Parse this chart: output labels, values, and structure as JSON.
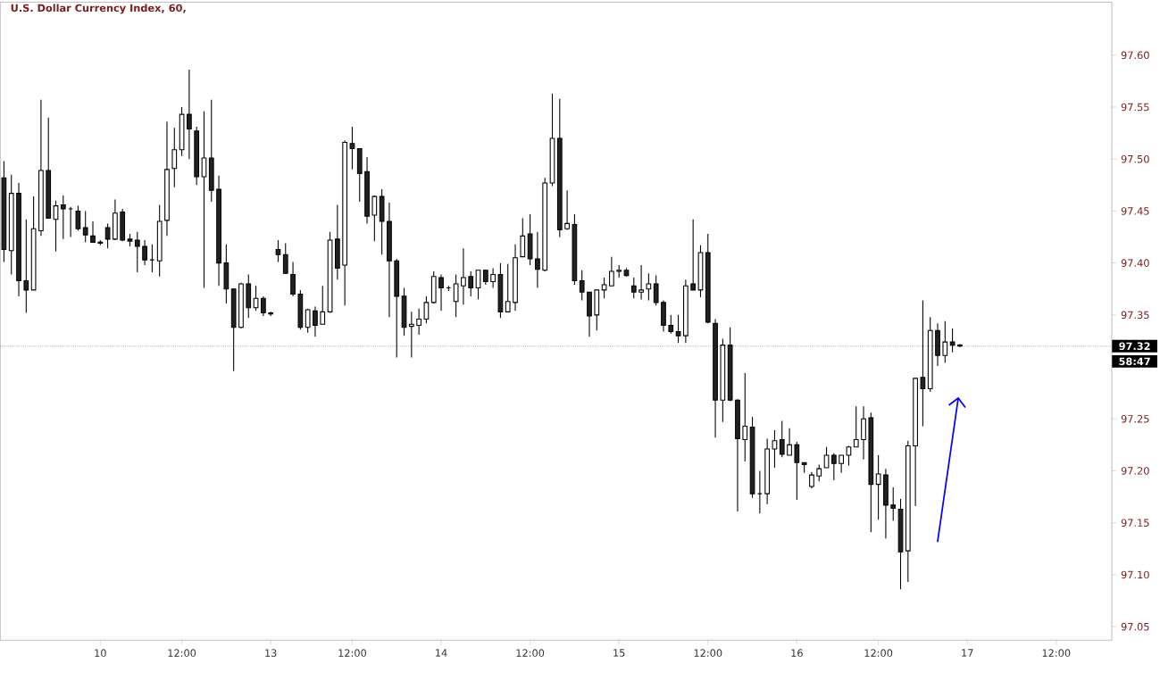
{
  "chart_data": {
    "type": "candlestick",
    "title": "U.S. Dollar Currency Index, 60,",
    "categories": [
      null,
      null,
      null,
      null,
      null,
      null,
      null,
      null,
      null,
      null,
      null,
      null,
      null,
      "10",
      null,
      null,
      null,
      null,
      null,
      null,
      null,
      null,
      null,
      null,
      "12:00",
      null,
      null,
      null,
      null,
      null,
      null,
      null,
      null,
      null,
      null,
      null,
      "13",
      null,
      null,
      null,
      null,
      null,
      null,
      null,
      null,
      null,
      null,
      "12:00",
      null,
      null,
      null,
      null,
      null,
      null,
      null,
      null,
      null,
      null,
      null,
      "14",
      null,
      null,
      null,
      null,
      null,
      null,
      null,
      null,
      null,
      null,
      null,
      "12:00",
      null,
      null,
      null,
      null,
      null,
      null,
      null,
      null,
      null,
      null,
      null,
      "15",
      null,
      null,
      null,
      null,
      null,
      null,
      null,
      null,
      null,
      null,
      null,
      "12:00",
      null,
      null,
      null,
      null,
      null,
      null,
      null,
      null,
      null,
      null,
      null,
      "16",
      null,
      null,
      null,
      null,
      null,
      null,
      null,
      null,
      null,
      null,
      "12:00",
      null,
      null,
      null,
      null,
      null,
      null,
      null,
      null,
      null,
      null,
      null,
      "17",
      null,
      null,
      null,
      null,
      null,
      null,
      null,
      null,
      null,
      null,
      null,
      "12:00",
      null,
      null,
      null,
      null,
      null,
      null,
      null
    ],
    "ohlc": [
      [
        97.482,
        97.498,
        97.401,
        97.413
      ],
      [
        97.412,
        97.485,
        97.389,
        97.467
      ],
      [
        97.467,
        97.477,
        97.368,
        97.383
      ],
      [
        97.383,
        97.442,
        97.352,
        97.374
      ],
      [
        97.374,
        97.464,
        97.374,
        97.433
      ],
      [
        97.431,
        97.557,
        97.426,
        97.489
      ],
      [
        97.489,
        97.54,
        97.443,
        97.443
      ],
      [
        97.442,
        97.46,
        97.411,
        97.455
      ],
      [
        97.456,
        97.465,
        97.423,
        97.452
      ],
      [
        97.452,
        97.454,
        97.425,
        97.452
      ],
      [
        97.45,
        97.455,
        97.431,
        97.433
      ],
      [
        97.434,
        97.45,
        97.42,
        97.427
      ],
      [
        97.426,
        97.44,
        97.42,
        97.42
      ],
      [
        97.42,
        97.422,
        97.417,
        97.419
      ],
      [
        97.434,
        97.438,
        97.414,
        97.423
      ],
      [
        97.423,
        97.461,
        97.422,
        97.448
      ],
      [
        97.449,
        97.452,
        97.421,
        97.422
      ],
      [
        97.423,
        97.428,
        97.416,
        97.421
      ],
      [
        97.422,
        97.43,
        97.391,
        97.416
      ],
      [
        97.416,
        97.422,
        97.398,
        97.403
      ],
      [
        97.403,
        97.418,
        97.391,
        97.403
      ],
      [
        97.402,
        97.456,
        97.387,
        97.44
      ],
      [
        97.441,
        97.536,
        97.426,
        97.49
      ],
      [
        97.491,
        97.53,
        97.473,
        97.509
      ],
      [
        97.509,
        97.55,
        97.503,
        97.543
      ],
      [
        97.543,
        97.586,
        97.5,
        97.529
      ],
      [
        97.527,
        97.531,
        97.475,
        97.483
      ],
      [
        97.483,
        97.546,
        97.376,
        97.501
      ],
      [
        97.501,
        97.557,
        97.459,
        97.47
      ],
      [
        97.471,
        97.484,
        97.378,
        97.4
      ],
      [
        97.4,
        97.418,
        97.361,
        97.375
      ],
      [
        97.375,
        97.375,
        97.296,
        97.338
      ],
      [
        97.338,
        97.381,
        97.337,
        97.38
      ],
      [
        97.38,
        97.389,
        97.347,
        97.357
      ],
      [
        97.357,
        97.378,
        97.354,
        97.366
      ],
      [
        97.366,
        97.368,
        97.349,
        97.352
      ],
      [
        97.352,
        97.353,
        97.349,
        97.351
      ],
      [
        97.413,
        97.422,
        97.401,
        97.408
      ],
      [
        97.408,
        97.419,
        97.39,
        97.39
      ],
      [
        97.389,
        97.401,
        97.368,
        97.37
      ],
      [
        97.37,
        97.374,
        97.336,
        97.338
      ],
      [
        97.338,
        97.356,
        97.333,
        97.355
      ],
      [
        97.354,
        97.358,
        97.329,
        97.34
      ],
      [
        97.341,
        97.378,
        97.341,
        97.353
      ],
      [
        97.353,
        97.43,
        97.352,
        97.422
      ],
      [
        97.423,
        97.456,
        97.384,
        97.395
      ],
      [
        97.398,
        97.518,
        97.359,
        97.516
      ],
      [
        97.515,
        97.531,
        97.49,
        97.51
      ],
      [
        97.51,
        97.51,
        97.459,
        97.486
      ],
      [
        97.488,
        97.502,
        97.438,
        97.445
      ],
      [
        97.446,
        97.465,
        97.421,
        97.464
      ],
      [
        97.464,
        97.471,
        97.408,
        97.44
      ],
      [
        97.44,
        97.458,
        97.348,
        97.402
      ],
      [
        97.402,
        97.404,
        97.309,
        97.368
      ],
      [
        97.368,
        97.376,
        97.33,
        97.338
      ],
      [
        97.339,
        97.353,
        97.309,
        97.341
      ],
      [
        97.34,
        97.356,
        97.331,
        97.346
      ],
      [
        97.346,
        97.368,
        97.342,
        97.362
      ],
      [
        97.362,
        97.392,
        97.361,
        97.387
      ],
      [
        97.386,
        97.389,
        97.354,
        97.376
      ],
      [
        97.376,
        97.378,
        97.373,
        97.376
      ],
      [
        97.363,
        97.389,
        97.348,
        97.38
      ],
      [
        97.378,
        97.414,
        97.36,
        97.386
      ],
      [
        97.387,
        97.392,
        97.368,
        97.376
      ],
      [
        97.376,
        97.393,
        97.365,
        97.393
      ],
      [
        97.393,
        97.393,
        97.379,
        97.382
      ],
      [
        97.382,
        97.395,
        97.376,
        97.389
      ],
      [
        97.389,
        97.4,
        97.347,
        97.353
      ],
      [
        97.353,
        97.399,
        97.353,
        97.363
      ],
      [
        97.362,
        97.418,
        97.354,
        97.405
      ],
      [
        97.406,
        97.443,
        97.406,
        97.426
      ],
      [
        97.428,
        97.447,
        97.398,
        97.404
      ],
      [
        97.404,
        97.43,
        97.376,
        97.394
      ],
      [
        97.393,
        97.482,
        97.392,
        97.477
      ],
      [
        97.477,
        97.563,
        97.474,
        97.52
      ],
      [
        97.52,
        97.558,
        97.425,
        97.432
      ],
      [
        97.433,
        97.47,
        97.432,
        97.438
      ],
      [
        97.437,
        97.447,
        97.379,
        97.383
      ],
      [
        97.383,
        97.393,
        97.364,
        97.372
      ],
      [
        97.372,
        97.372,
        97.329,
        97.349
      ],
      [
        97.35,
        97.374,
        97.335,
        97.374
      ],
      [
        97.374,
        97.386,
        97.366,
        97.379
      ],
      [
        97.378,
        97.406,
        97.378,
        97.392
      ],
      [
        97.392,
        97.398,
        97.386,
        97.393
      ],
      [
        97.393,
        97.395,
        97.387,
        97.388
      ],
      [
        97.378,
        97.386,
        97.366,
        97.372
      ],
      [
        97.372,
        97.398,
        97.365,
        97.374
      ],
      [
        97.375,
        97.39,
        97.364,
        97.38
      ],
      [
        97.38,
        97.388,
        97.359,
        97.362
      ],
      [
        97.362,
        97.364,
        97.334,
        97.34
      ],
      [
        97.34,
        97.35,
        97.332,
        97.334
      ],
      [
        97.334,
        97.35,
        97.323,
        97.33
      ],
      [
        97.33,
        97.384,
        97.323,
        97.378
      ],
      [
        97.38,
        97.442,
        97.374,
        97.374
      ],
      [
        97.374,
        97.417,
        97.367,
        97.41
      ],
      [
        97.41,
        97.428,
        97.342,
        97.343
      ],
      [
        97.342,
        97.346,
        97.232,
        97.268
      ],
      [
        97.268,
        97.327,
        97.247,
        97.321
      ],
      [
        97.321,
        97.338,
        97.267,
        97.268
      ],
      [
        97.268,
        97.269,
        97.161,
        97.231
      ],
      [
        97.23,
        97.294,
        97.209,
        97.243
      ],
      [
        97.242,
        97.252,
        97.174,
        97.178
      ],
      [
        97.178,
        97.2,
        97.159,
        97.178
      ],
      [
        97.178,
        97.231,
        97.168,
        97.221
      ],
      [
        97.221,
        97.239,
        97.203,
        97.229
      ],
      [
        97.23,
        97.248,
        97.213,
        97.216
      ],
      [
        97.215,
        97.241,
        97.215,
        97.225
      ],
      [
        97.225,
        97.228,
        97.172,
        97.208
      ],
      [
        97.208,
        97.208,
        97.198,
        97.206
      ],
      [
        97.185,
        97.199,
        97.183,
        97.196
      ],
      [
        97.195,
        97.206,
        97.19,
        97.202
      ],
      [
        97.203,
        97.223,
        97.203,
        97.215
      ],
      [
        97.215,
        97.217,
        97.191,
        97.207
      ],
      [
        97.207,
        97.215,
        97.198,
        97.215
      ],
      [
        97.215,
        97.224,
        97.205,
        97.223
      ],
      [
        97.223,
        97.262,
        97.223,
        97.23
      ],
      [
        97.23,
        97.262,
        97.211,
        97.25
      ],
      [
        97.251,
        97.256,
        97.141,
        97.187
      ],
      [
        97.187,
        97.215,
        97.153,
        97.197
      ],
      [
        97.196,
        97.202,
        97.135,
        97.167
      ],
      [
        97.167,
        97.184,
        97.152,
        97.164
      ],
      [
        97.163,
        97.173,
        97.086,
        97.122
      ],
      [
        97.123,
        97.229,
        97.093,
        97.224
      ],
      [
        97.224,
        97.289,
        97.166,
        97.289
      ],
      [
        97.29,
        97.364,
        97.243,
        97.279
      ],
      [
        97.279,
        97.348,
        97.276,
        97.335
      ],
      [
        97.335,
        97.342,
        97.301,
        97.311
      ],
      [
        97.311,
        97.344,
        97.304,
        97.324
      ],
      [
        97.324,
        97.337,
        97.314,
        97.321
      ],
      [
        97.321,
        97.322,
        97.319,
        97.32
      ],
      null,
      null,
      null,
      null,
      null,
      null,
      null,
      null,
      null,
      null,
      null,
      null,
      null,
      null,
      null,
      null,
      null,
      null,
      null,
      null
    ],
    "ylim": [
      97.037,
      97.651
    ],
    "yticks": [
      97.05,
      {
        "value": 97.1,
        "label": "97.10"
      },
      97.15,
      {
        "value": 97.2,
        "label": "97.20"
      },
      97.25,
      {
        "value": 97.3,
        "label": null
      },
      97.35,
      {
        "value": 97.4,
        "label": "97.40"
      },
      97.45,
      {
        "value": 97.5,
        "label": "97.50"
      },
      97.55,
      {
        "value": 97.6,
        "label": "97.60"
      }
    ],
    "ref_lines": [
      {
        "axis": "y",
        "value": 97.32,
        "label": "97.32",
        "line_style": "dotted"
      }
    ],
    "annotations": [
      "58:47"
    ]
  }
}
